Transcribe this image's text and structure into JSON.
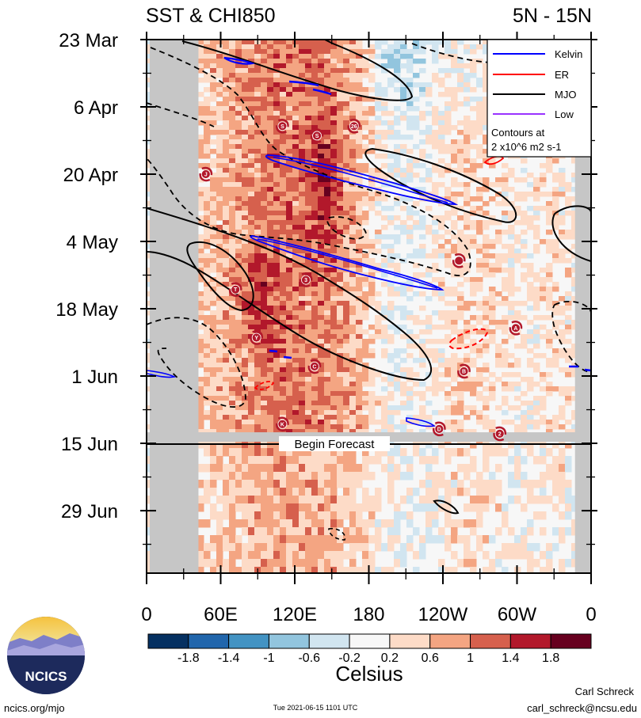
{
  "chart_data": {
    "type": "heatmap",
    "title_left": "SST & CHI850",
    "title_right": "5N - 15N",
    "y_ticks": [
      "23 Mar",
      "6 Apr",
      "20 Apr",
      "4 May",
      "18 May",
      "1 Jun",
      "15 Jun",
      "29 Jun"
    ],
    "y_tick_days": [
      0,
      14,
      28,
      42,
      56,
      70,
      84,
      98
    ],
    "y_range_days": [
      0,
      111
    ],
    "x_ticks": [
      "0",
      "60E",
      "120E",
      "180",
      "120W",
      "60W",
      "0"
    ],
    "x_tick_lon": [
      0,
      60,
      120,
      180,
      240,
      300,
      360
    ],
    "x_range_lon": [
      0,
      360
    ],
    "forecast_label": "Begin Forecast",
    "forecast_day": 84,
    "legend": {
      "entries": [
        {
          "name": "Kelvin",
          "color": "#0000ff"
        },
        {
          "name": "ER",
          "color": "#ff0000"
        },
        {
          "name": "MJO",
          "color": "#000000"
        },
        {
          "name": "Low",
          "color": "#9933ff"
        }
      ],
      "note_line1": "Contours at",
      "note_line2": "2 x10^6 m2 s-1"
    },
    "colorbar": {
      "label": "Celsius",
      "levels": [
        "-1.8",
        "-1.4",
        "-1",
        "-0.6",
        "-0.2",
        "0.2",
        "0.6",
        "1",
        "1.4",
        "1.8"
      ],
      "colors": [
        "#053061",
        "#2166ac",
        "#4393c3",
        "#92c5de",
        "#d1e5f0",
        "#f7f7f7",
        "#fddbc7",
        "#f4a582",
        "#d6604d",
        "#b2182b",
        "#67001f"
      ]
    },
    "storms": [
      {
        "label": "S",
        "lon": 110,
        "day": 18
      },
      {
        "label": "S",
        "lon": 138,
        "day": 20
      },
      {
        "label": "26",
        "lon": 168,
        "day": 18
      },
      {
        "label": "J",
        "lon": 48,
        "day": 28
      },
      {
        "label": "",
        "lon": 253,
        "day": 46
      },
      {
        "label": "T",
        "lon": 72,
        "day": 52
      },
      {
        "label": "3",
        "lon": 129,
        "day": 50
      },
      {
        "label": "A",
        "lon": 299,
        "day": 60
      },
      {
        "label": "Y",
        "lon": 89,
        "day": 62
      },
      {
        "label": "C",
        "lon": 136,
        "day": 68
      },
      {
        "label": "B",
        "lon": 257,
        "day": 69
      },
      {
        "label": "K",
        "lon": 110,
        "day": 80
      },
      {
        "label": "D",
        "lon": 237,
        "day": 81
      },
      {
        "label": "2",
        "lon": 286,
        "day": 82
      }
    ]
  },
  "footer": {
    "logo_text": "NCICS",
    "url": "ncics.org/mjo",
    "timestamp": "Tue 2021-06-15 1101 UTC",
    "author": "Carl Schreck",
    "email": "carl_schreck@ncsu.edu"
  }
}
